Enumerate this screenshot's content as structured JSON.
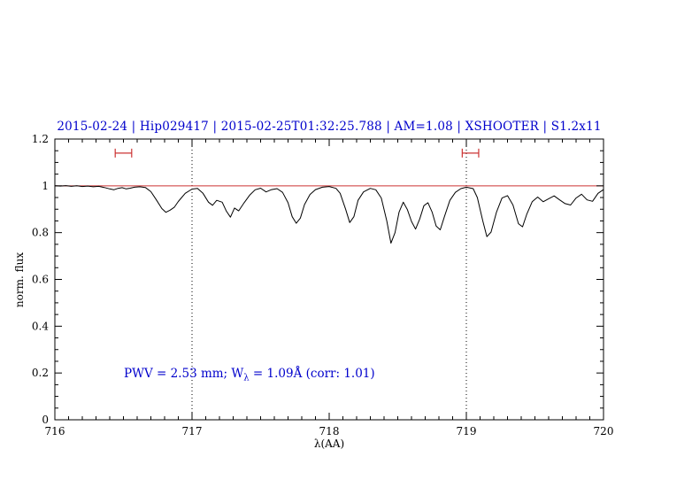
{
  "colors": {
    "title": "#0000cc",
    "annotation": "#0000cc",
    "spectrum": "#000000",
    "reference_line": "#cc3333",
    "marker": "#cc3333",
    "axis": "#000000",
    "vline": "#000000"
  },
  "chart_data": {
    "type": "line",
    "title": "2015-02-24 | Hip029417 | 2015-02-25T01:32:25.788 | AM=1.08 | XSHOOTER | S1.2x11",
    "xlabel": "λ(AA)",
    "ylabel": "norm. flux",
    "xlim": [
      716,
      720
    ],
    "ylim": [
      0,
      1.2
    ],
    "x_ticks": [
      716,
      717,
      718,
      719,
      720
    ],
    "x_tick_labels": [
      "716",
      "717",
      "718",
      "719",
      "720"
    ],
    "x_minor_step": 0.1,
    "y_ticks": [
      0,
      0.2,
      0.4,
      0.6,
      0.8,
      1,
      1.2
    ],
    "y_tick_labels": [
      "0",
      "0.2",
      "0.4",
      "0.6",
      "0.8",
      "1",
      "1.2"
    ],
    "y_minor_step": 0.05,
    "grid": false,
    "legend": "none",
    "reference_line_y": 1,
    "dotted_vlines": [
      717,
      719
    ],
    "range_markers": [
      {
        "x1": 716.44,
        "x2": 716.56,
        "y": 1.14
      },
      {
        "x1": 718.97,
        "x2": 719.09,
        "y": 1.14
      }
    ],
    "annotation": {
      "prefix": "PWV  =  2.53 mm; W",
      "subscript": "λ",
      "suffix": "  =  1.09Å  (corr:  1.01)",
      "x": 716.5,
      "y": 0.2
    },
    "series": [
      {
        "name": "spectrum",
        "points": [
          [
            716.0,
            1.0
          ],
          [
            716.04,
            0.999
          ],
          [
            716.08,
            1.001
          ],
          [
            716.12,
            0.998
          ],
          [
            716.16,
            1.0
          ],
          [
            716.2,
            0.997
          ],
          [
            716.24,
            0.999
          ],
          [
            716.28,
            0.996
          ],
          [
            716.32,
            0.998
          ],
          [
            716.36,
            0.993
          ],
          [
            716.4,
            0.987
          ],
          [
            716.43,
            0.983
          ],
          [
            716.46,
            0.989
          ],
          [
            716.49,
            0.992
          ],
          [
            716.52,
            0.987
          ],
          [
            716.55,
            0.99
          ],
          [
            716.58,
            0.994
          ],
          [
            716.62,
            0.996
          ],
          [
            716.66,
            0.993
          ],
          [
            716.7,
            0.975
          ],
          [
            716.74,
            0.94
          ],
          [
            716.78,
            0.903
          ],
          [
            716.81,
            0.887
          ],
          [
            716.84,
            0.896
          ],
          [
            716.87,
            0.908
          ],
          [
            716.9,
            0.933
          ],
          [
            716.95,
            0.968
          ],
          [
            717.0,
            0.986
          ],
          [
            717.04,
            0.989
          ],
          [
            717.08,
            0.968
          ],
          [
            717.12,
            0.93
          ],
          [
            717.15,
            0.917
          ],
          [
            717.18,
            0.938
          ],
          [
            717.22,
            0.93
          ],
          [
            717.25,
            0.892
          ],
          [
            717.28,
            0.866
          ],
          [
            717.31,
            0.905
          ],
          [
            717.34,
            0.893
          ],
          [
            717.38,
            0.928
          ],
          [
            717.42,
            0.96
          ],
          [
            717.46,
            0.983
          ],
          [
            717.5,
            0.99
          ],
          [
            717.54,
            0.974
          ],
          [
            717.58,
            0.984
          ],
          [
            717.62,
            0.988
          ],
          [
            717.66,
            0.972
          ],
          [
            717.7,
            0.928
          ],
          [
            717.73,
            0.868
          ],
          [
            717.76,
            0.84
          ],
          [
            717.79,
            0.862
          ],
          [
            717.82,
            0.92
          ],
          [
            717.86,
            0.963
          ],
          [
            717.9,
            0.984
          ],
          [
            717.95,
            0.994
          ],
          [
            718.0,
            0.997
          ],
          [
            718.05,
            0.989
          ],
          [
            718.08,
            0.968
          ],
          [
            718.12,
            0.9
          ],
          [
            718.15,
            0.843
          ],
          [
            718.18,
            0.868
          ],
          [
            718.21,
            0.938
          ],
          [
            718.25,
            0.974
          ],
          [
            718.3,
            0.989
          ],
          [
            718.34,
            0.983
          ],
          [
            718.38,
            0.948
          ],
          [
            718.42,
            0.85
          ],
          [
            718.45,
            0.755
          ],
          [
            718.48,
            0.8
          ],
          [
            718.51,
            0.888
          ],
          [
            718.54,
            0.93
          ],
          [
            718.57,
            0.898
          ],
          [
            718.6,
            0.848
          ],
          [
            718.63,
            0.815
          ],
          [
            718.66,
            0.858
          ],
          [
            718.69,
            0.915
          ],
          [
            718.72,
            0.928
          ],
          [
            718.75,
            0.888
          ],
          [
            718.78,
            0.828
          ],
          [
            718.81,
            0.812
          ],
          [
            718.84,
            0.868
          ],
          [
            718.88,
            0.938
          ],
          [
            718.92,
            0.972
          ],
          [
            718.96,
            0.988
          ],
          [
            719.0,
            0.994
          ],
          [
            719.05,
            0.988
          ],
          [
            719.08,
            0.95
          ],
          [
            719.12,
            0.85
          ],
          [
            719.15,
            0.783
          ],
          [
            719.18,
            0.802
          ],
          [
            719.22,
            0.888
          ],
          [
            719.26,
            0.948
          ],
          [
            719.3,
            0.958
          ],
          [
            719.34,
            0.918
          ],
          [
            719.38,
            0.838
          ],
          [
            719.41,
            0.825
          ],
          [
            719.44,
            0.878
          ],
          [
            719.48,
            0.932
          ],
          [
            719.52,
            0.952
          ],
          [
            719.56,
            0.932
          ],
          [
            719.6,
            0.945
          ],
          [
            719.64,
            0.957
          ],
          [
            719.68,
            0.94
          ],
          [
            719.72,
            0.924
          ],
          [
            719.76,
            0.918
          ],
          [
            719.8,
            0.948
          ],
          [
            719.84,
            0.964
          ],
          [
            719.88,
            0.94
          ],
          [
            719.92,
            0.934
          ],
          [
            719.96,
            0.968
          ],
          [
            720.0,
            0.984
          ]
        ]
      }
    ]
  }
}
